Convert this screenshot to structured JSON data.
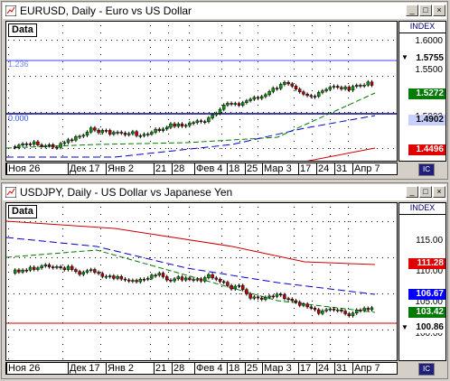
{
  "windows": [
    {
      "title": "EURUSD, Daily - Euro vs US Dollar",
      "data_tab": "Data",
      "index_label": "INDEX",
      "scale_ticks": [
        "1.6000",
        "1.5500",
        "1.5000"
      ],
      "badges": [
        {
          "label": "1.5755",
          "bg": "#ffffff",
          "fg": "#000000",
          "marker": "▼"
        },
        {
          "label": "1.5272",
          "bg": "#007a00",
          "fg": "#ffffff",
          "marker": ""
        },
        {
          "label": "1.4902",
          "bg": "#c8d0ff",
          "fg": "#000000",
          "marker": ""
        },
        {
          "label": "1.4496",
          "bg": "#e00000",
          "fg": "#ffffff",
          "marker": ""
        }
      ],
      "line_labels": [
        "1.236",
        "0.000"
      ],
      "x_labels": [
        "Ноя 26",
        "Дек 17",
        "Янв 2",
        "21",
        "28",
        "Фев 4",
        "18",
        "25",
        "Мар 3",
        "17",
        "24",
        "31",
        "Апр 7"
      ],
      "corner_label": "IC"
    },
    {
      "title": "USDJPY, Daily - US Dollar vs Japanese Yen",
      "data_tab": "Data",
      "index_label": "INDEX",
      "scale_ticks": [
        "115.00",
        "110.00",
        "105.00",
        "100.00"
      ],
      "badges": [
        {
          "label": "111.28",
          "bg": "#e00000",
          "fg": "#ffffff",
          "marker": ""
        },
        {
          "label": "106.67",
          "bg": "#0000ff",
          "fg": "#ffffff",
          "marker": ""
        },
        {
          "label": "103.42",
          "bg": "#007a00",
          "fg": "#ffffff",
          "marker": ""
        },
        {
          "label": "100.86",
          "bg": "#ffffff",
          "fg": "#000000",
          "marker": "▼"
        }
      ],
      "line_labels": [],
      "x_labels": [
        "Ноя 26",
        "Дек 17",
        "Янв 2",
        "21",
        "28",
        "Фев 4",
        "18",
        "25",
        "Мар 3",
        "17",
        "24",
        "31",
        "Апр 7"
      ],
      "corner_label": "IC"
    }
  ],
  "colors": {
    "candle_up": "#00a000",
    "candle_down": "#c00000",
    "ma_red": "#cc0000",
    "ma_green": "#007a00",
    "ma_blue": "#0000cc",
    "hline": "#00008b",
    "hline2": "#cc0000"
  }
}
